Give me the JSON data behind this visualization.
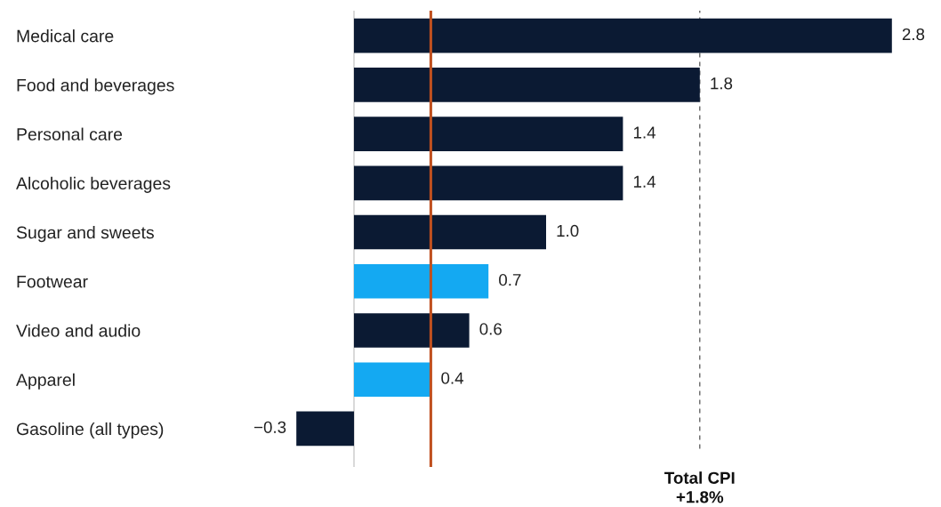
{
  "chart_data": {
    "type": "bar",
    "orientation": "horizontal",
    "categories": [
      "Medical care",
      "Food and beverages",
      "Personal care",
      "Alcoholic beverages",
      "Sugar and sweets",
      "Footwear",
      "Video and audio",
      "Apparel",
      "Gasoline (all types)"
    ],
    "values": [
      2.8,
      1.8,
      1.4,
      1.4,
      1.0,
      0.7,
      0.6,
      0.4,
      -0.3
    ],
    "value_labels": [
      "2.8",
      "1.8",
      "1.4",
      "1.4",
      "1.0",
      "0.7",
      "0.6",
      "0.4",
      "−0.3"
    ],
    "colors": [
      "#0b1a33",
      "#0b1a33",
      "#0b1a33",
      "#0b1a33",
      "#0b1a33",
      "#14a9f2",
      "#0b1a33",
      "#14a9f2",
      "#0b1a33"
    ],
    "ref_lines": [
      {
        "axis": "x",
        "value": 1.8,
        "label": "Total CPI\n+1.8%",
        "color": "#555555",
        "line_style": "dashed"
      },
      {
        "axis": "x",
        "value": 0.4,
        "label": null,
        "color": "#c0501f",
        "line_style": "solid"
      }
    ],
    "grid": false,
    "legend": false
  }
}
